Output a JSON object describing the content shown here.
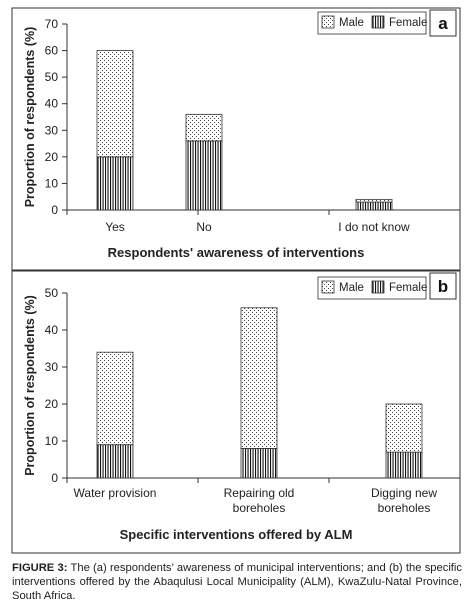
{
  "chart_data": [
    {
      "type": "bar",
      "stacked": true,
      "panel_label": "a",
      "title": "",
      "xlabel": "Respondents' awareness of interventions",
      "ylabel": "Proportion of respondents (%)",
      "ylim": [
        0,
        70
      ],
      "yticks": [
        0,
        10,
        20,
        30,
        40,
        50,
        60,
        70
      ],
      "categories": [
        "Yes",
        "No",
        "I do not know"
      ],
      "series": [
        {
          "name": "Female",
          "values": [
            20,
            26,
            3
          ],
          "pattern": "vertical-lines"
        },
        {
          "name": "Male",
          "values": [
            40,
            10,
            1
          ],
          "pattern": "dots"
        }
      ],
      "legend": [
        "Male",
        "Female"
      ],
      "legend_position": "top-right",
      "grid": false
    },
    {
      "type": "bar",
      "stacked": true,
      "panel_label": "b",
      "title": "",
      "xlabel": "Specific interventions offered by ALM",
      "ylabel": "Proportion of respondents (%)",
      "ylim": [
        0,
        50
      ],
      "yticks": [
        0,
        10,
        20,
        30,
        40,
        50
      ],
      "categories": [
        [
          "Water provision"
        ],
        [
          "Repairing old",
          "boreholes"
        ],
        [
          "Digging new",
          "boreholes"
        ]
      ],
      "series": [
        {
          "name": "Female",
          "values": [
            9,
            8,
            7
          ],
          "pattern": "vertical-lines"
        },
        {
          "name": "Male",
          "values": [
            25,
            38,
            13
          ],
          "pattern": "dots"
        }
      ],
      "legend": [
        "Male",
        "Female"
      ],
      "legend_position": "top-right",
      "grid": false
    }
  ],
  "caption": {
    "label": "FIGURE 3:",
    "text": " The (a) respondents’ awareness of municipal interventions; and (b) the specific interventions offered by the Abaqulusi Local Municipality (ALM), KwaZulu-Natal Province, South Africa."
  }
}
